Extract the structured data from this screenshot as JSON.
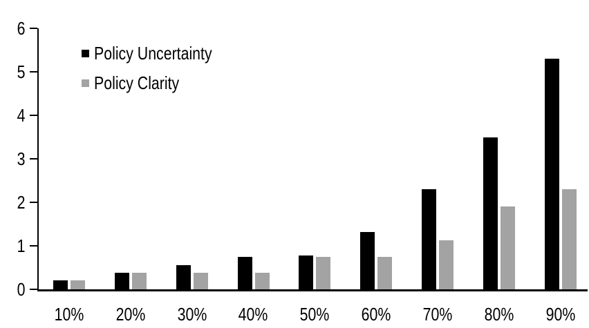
{
  "chart_data": {
    "type": "bar",
    "title": "",
    "xlabel": "",
    "ylabel": "",
    "categories": [
      "10%",
      "20%",
      "30%",
      "40%",
      "50%",
      "60%",
      "70%",
      "80%",
      "90%"
    ],
    "series": [
      {
        "name": "Policy Uncertainty",
        "color": "#000000",
        "values": [
          0.2,
          0.38,
          0.55,
          0.75,
          0.78,
          1.32,
          2.3,
          3.5,
          5.3
        ]
      },
      {
        "name": "Policy Clarity",
        "color": "#a3a3a3",
        "values": [
          0.2,
          0.38,
          0.38,
          0.38,
          0.75,
          0.75,
          1.13,
          1.9,
          2.3
        ]
      }
    ],
    "ylim": [
      0,
      6
    ],
    "yticks": [
      "0",
      "1",
      "2",
      "3",
      "4",
      "5",
      "6"
    ],
    "grid": false,
    "legend_position": "top-left",
    "axis_color": "#000000",
    "background_color": "#ffffff"
  }
}
